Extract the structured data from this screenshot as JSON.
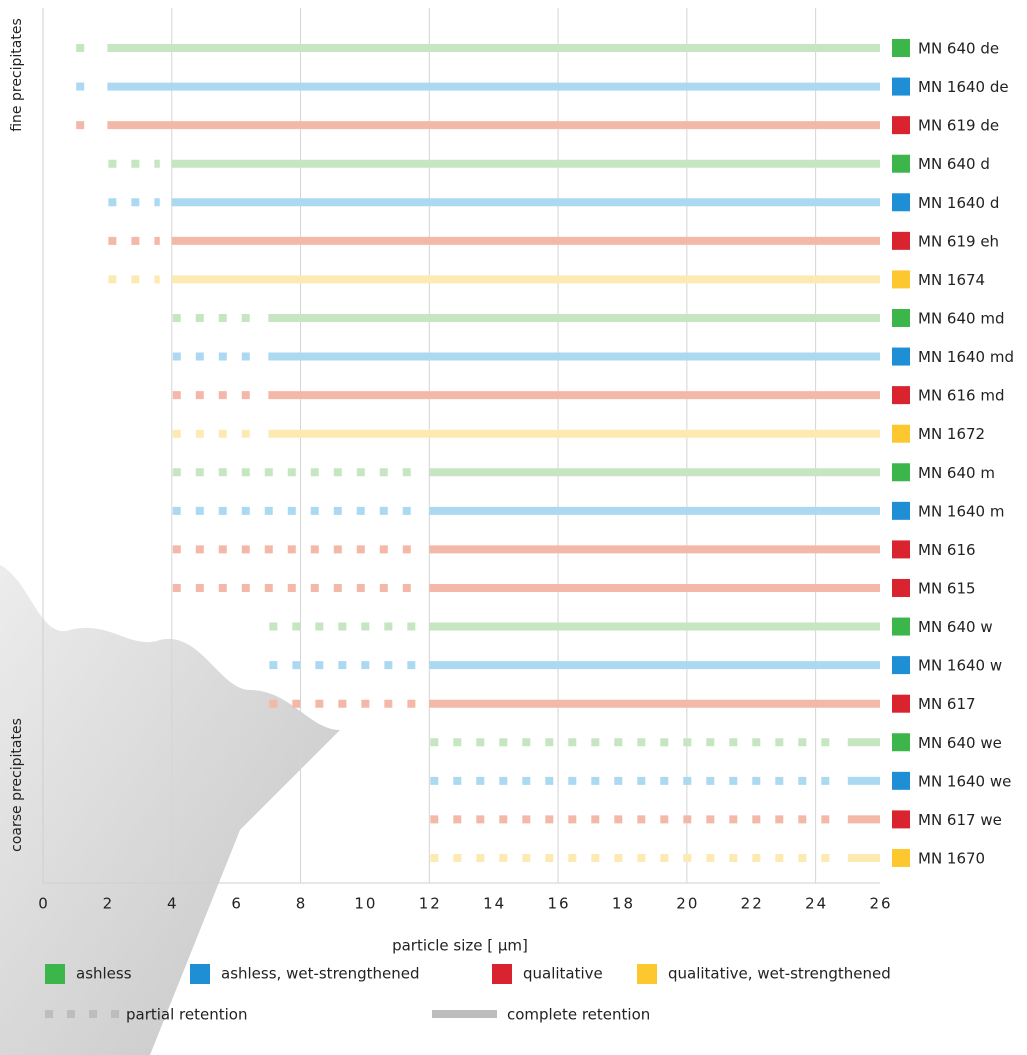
{
  "chart_data": {
    "type": "range-bar",
    "xlabel": "particle size [ µm]",
    "ylabel_top": "fine precipitates",
    "ylabel_bottom": "coarse precipitates",
    "xlim": [
      0,
      26
    ],
    "xticks": [
      0,
      2,
      4,
      6,
      8,
      10,
      12,
      14,
      16,
      18,
      20,
      22,
      24,
      26
    ],
    "xgrid": [
      4,
      8,
      12,
      16,
      20,
      24
    ],
    "groups": [
      {
        "name": "ashless",
        "color": "#3cb54a",
        "line_color": "#c5e6c0"
      },
      {
        "name": "ashless, wet-strengthened",
        "color": "#1e8fd5",
        "line_color": "#abd9f1"
      },
      {
        "name": "qualitative",
        "color": "#d9232e",
        "line_color": "#f3b8a7"
      },
      {
        "name": "qualitative, wet-strengthened",
        "color": "#fdc82f",
        "line_color": "#fdeab3"
      }
    ],
    "styles": {
      "partial": "partial retention",
      "complete": "complete retention",
      "color": "#bdbdbd"
    },
    "rows": [
      {
        "label": "MN 640 de",
        "group": 0,
        "partial": [
          1,
          2
        ],
        "complete": [
          2,
          26
        ]
      },
      {
        "label": "MN 1640 de",
        "group": 1,
        "partial": [
          1,
          2
        ],
        "complete": [
          2,
          26
        ]
      },
      {
        "label": "MN 619 de",
        "group": 2,
        "partial": [
          1,
          2
        ],
        "complete": [
          2,
          26
        ]
      },
      {
        "label": "MN 640 d",
        "group": 0,
        "partial": [
          2,
          4
        ],
        "complete": [
          4,
          26
        ]
      },
      {
        "label": "MN 1640 d",
        "group": 1,
        "partial": [
          2,
          4
        ],
        "complete": [
          4,
          26
        ]
      },
      {
        "label": "MN 619 eh",
        "group": 2,
        "partial": [
          2,
          4
        ],
        "complete": [
          4,
          26
        ]
      },
      {
        "label": "MN 1674",
        "group": 3,
        "partial": [
          2,
          4
        ],
        "complete": [
          4,
          26
        ]
      },
      {
        "label": "MN 640 md",
        "group": 0,
        "partial": [
          4,
          7
        ],
        "complete": [
          7,
          26
        ]
      },
      {
        "label": "MN 1640 md",
        "group": 1,
        "partial": [
          4,
          7
        ],
        "complete": [
          7,
          26
        ]
      },
      {
        "label": "MN 616 md",
        "group": 2,
        "partial": [
          4,
          7
        ],
        "complete": [
          7,
          26
        ]
      },
      {
        "label": "MN 1672",
        "group": 3,
        "partial": [
          4,
          7
        ],
        "complete": [
          7,
          26
        ]
      },
      {
        "label": "MN 640 m",
        "group": 0,
        "partial": [
          4,
          12
        ],
        "complete": [
          12,
          26
        ]
      },
      {
        "label": "MN 1640 m",
        "group": 1,
        "partial": [
          4,
          12
        ],
        "complete": [
          12,
          26
        ]
      },
      {
        "label": "MN 616",
        "group": 2,
        "partial": [
          4,
          12
        ],
        "complete": [
          12,
          26
        ]
      },
      {
        "label": "MN 615",
        "group": 2,
        "partial": [
          4,
          12
        ],
        "complete": [
          12,
          26
        ]
      },
      {
        "label": "MN 640 w",
        "group": 0,
        "partial": [
          7,
          12
        ],
        "complete": [
          12,
          26
        ]
      },
      {
        "label": "MN 1640 w",
        "group": 1,
        "partial": [
          7,
          12
        ],
        "complete": [
          12,
          26
        ]
      },
      {
        "label": "MN 617",
        "group": 2,
        "partial": [
          7,
          12
        ],
        "complete": [
          12,
          26
        ]
      },
      {
        "label": "MN 640 we",
        "group": 0,
        "partial": [
          12,
          25
        ],
        "complete": [
          25,
          26
        ]
      },
      {
        "label": "MN 1640 we",
        "group": 1,
        "partial": [
          12,
          25
        ],
        "complete": [
          25,
          26
        ]
      },
      {
        "label": "MN 617 we",
        "group": 2,
        "partial": [
          12,
          25
        ],
        "complete": [
          25,
          26
        ]
      },
      {
        "label": "MN 1670",
        "group": 3,
        "partial": [
          12,
          25
        ],
        "complete": [
          25,
          26
        ]
      }
    ]
  }
}
